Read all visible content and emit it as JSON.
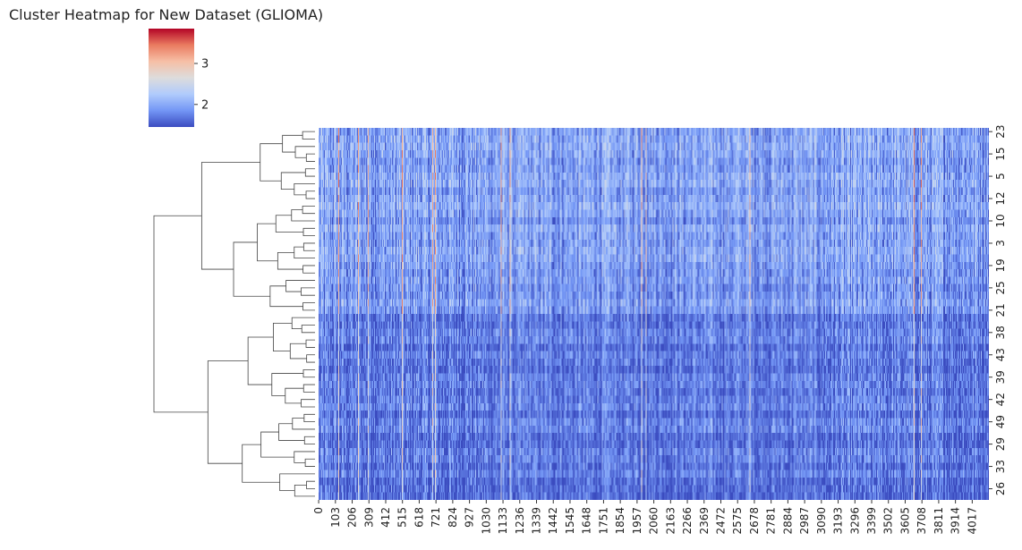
{
  "chart_data": {
    "type": "heatmap",
    "title": "Cluster Heatmap for New Dataset (GLIOMA)",
    "colormap": "coolwarm",
    "colormap_stops": [
      "#3b4cc0",
      "#7396f5",
      "#b0cbfc",
      "#dddcdc",
      "#f6bfa6",
      "#ea7b60",
      "#b40426"
    ],
    "value_range": [
      1.45,
      3.85
    ],
    "colorbar_ticks": [
      2,
      3
    ],
    "colorbar_tick_labels": [
      "2",
      "3"
    ],
    "x_tick_labels": [
      "0",
      "103",
      "206",
      "309",
      "412",
      "515",
      "618",
      "721",
      "824",
      "927",
      "1030",
      "1133",
      "1236",
      "1339",
      "1442",
      "1545",
      "1648",
      "1751",
      "1854",
      "1957",
      "2060",
      "2163",
      "2266",
      "2369",
      "2472",
      "2575",
      "2678",
      "2781",
      "2884",
      "2987",
      "3090",
      "3193",
      "3296",
      "3399",
      "3502",
      "3605",
      "3708",
      "3811",
      "3914",
      "4017"
    ],
    "x_tick_step": 103,
    "num_columns": 4120,
    "row_tick_labels": [
      "23",
      "15",
      "5",
      "12",
      "10",
      "3",
      "19",
      "25",
      "21",
      "38",
      "43",
      "39",
      "42",
      "49",
      "29",
      "33",
      "26"
    ],
    "num_rows": 50,
    "row_clusters": {
      "upper_rows": 25,
      "lower_rows": 25,
      "upper_mean_level": 1.95,
      "lower_mean_level": 1.7,
      "hot_columns": [
        120,
        240,
        300,
        510,
        700,
        715,
        1120,
        1175,
        1985,
        2010,
        2650,
        3660,
        3700
      ]
    },
    "row_dendrogram": true,
    "grid": false
  }
}
